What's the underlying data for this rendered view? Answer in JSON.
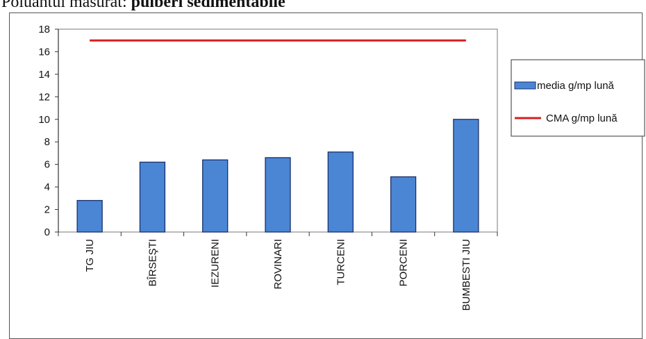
{
  "caption": {
    "prefix": "Poluantul măsurat:",
    "emphasis": "pulberi sedimentabile"
  },
  "chart_data": {
    "type": "bar",
    "categories": [
      "TG JIU",
      "BÎRSEŞTI",
      "IEZURENI",
      "ROVINARI",
      "TURCENI",
      "PORCENI",
      "BUMBESTI JIU"
    ],
    "series": [
      {
        "name": "media g/mp lună",
        "type": "bar",
        "values": [
          2.8,
          6.2,
          6.4,
          6.6,
          7.1,
          4.9,
          10.0
        ],
        "color": "#4a86d4"
      },
      {
        "name": "CMA g/mp lună",
        "type": "line",
        "values": [
          17,
          17,
          17,
          17,
          17,
          17,
          17
        ],
        "color": "#d42020"
      }
    ],
    "ylim": [
      0,
      18
    ],
    "yticks": [
      "0",
      "2",
      "4",
      "6",
      "8",
      "10",
      "12",
      "14",
      "16",
      "18"
    ],
    "grid": true,
    "legend_position": "right"
  }
}
